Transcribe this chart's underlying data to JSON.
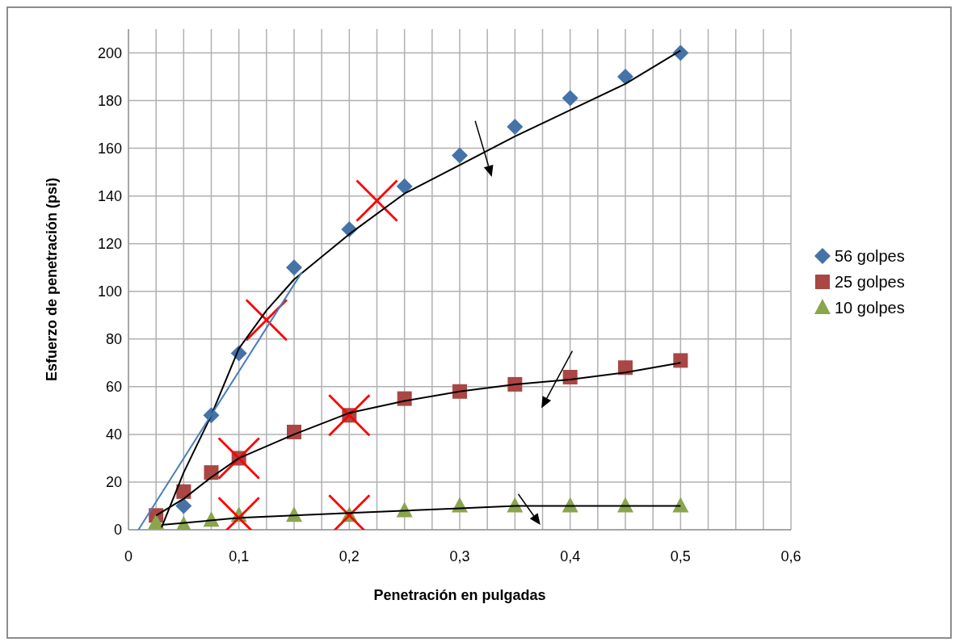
{
  "chart_data": {
    "type": "scatter",
    "xlabel": "Penetración  en pulgadas",
    "ylabel": "Esfuerzo de penetración (psi)",
    "xlim": [
      0,
      0.6
    ],
    "xticks": [
      0,
      {
        "value": 0.025,
        "label": null
      },
      {
        "value": 0.05,
        "label": null
      },
      {
        "value": 0.075,
        "label": null
      },
      {
        "value": 0.1,
        "label": "0,1"
      },
      {
        "value": 0.125,
        "label": null
      },
      {
        "value": 0.15,
        "label": null
      },
      {
        "value": 0.175,
        "label": null
      },
      {
        "value": 0.2,
        "label": "0,2"
      },
      {
        "value": 0.225,
        "label": null
      },
      {
        "value": 0.25,
        "label": null
      },
      {
        "value": 0.275,
        "label": null
      },
      {
        "value": 0.3,
        "label": "0,3"
      },
      {
        "value": 0.325,
        "label": null
      },
      {
        "value": 0.35,
        "label": null
      },
      {
        "value": 0.375,
        "label": null
      },
      {
        "value": 0.4,
        "label": "0,4"
      },
      {
        "value": 0.425,
        "label": null
      },
      {
        "value": 0.45,
        "label": null
      },
      {
        "value": 0.475,
        "label": null
      },
      {
        "value": 0.5,
        "label": "0,5"
      },
      {
        "value": 0.525,
        "label": null
      },
      {
        "value": 0.55,
        "label": null
      },
      {
        "value": 0.575,
        "label": null
      },
      {
        "value": 0.6,
        "label": "0,6"
      }
    ],
    "ylim": [
      0,
      210
    ],
    "yticks": [
      0,
      20,
      40,
      60,
      80,
      100,
      120,
      140,
      160,
      180,
      200
    ],
    "grid": true,
    "legend": "right",
    "series": [
      {
        "name": "56 golpes",
        "color": "#4573a7",
        "marker": "diamond",
        "x": [
          0.05,
          0.075,
          0.1,
          0.15,
          0.2,
          0.25,
          0.3,
          0.35,
          0.4,
          0.45,
          0.5
        ],
        "values": [
          10,
          48,
          74,
          110,
          126,
          144,
          157,
          169,
          181,
          190,
          200
        ]
      },
      {
        "name": "25 golpes",
        "color": "#aa4643",
        "marker": "square",
        "x": [
          0.025,
          0.05,
          0.075,
          0.1,
          0.15,
          0.2,
          0.25,
          0.3,
          0.35,
          0.4,
          0.45,
          0.5
        ],
        "values": [
          6,
          16,
          24,
          30,
          41,
          48,
          55,
          58,
          61,
          64,
          68,
          71
        ]
      },
      {
        "name": "10 golpes",
        "color": "#89a54e",
        "marker": "triangle",
        "x": [
          0.025,
          0.05,
          0.075,
          0.1,
          0.15,
          0.2,
          0.25,
          0.3,
          0.35,
          0.4,
          0.45,
          0.5
        ],
        "values": [
          3,
          2,
          4,
          6,
          6,
          6,
          8,
          10,
          10,
          10,
          10,
          10
        ]
      },
      {
        "type": "line",
        "color": "#000000",
        "x": [
          0.03,
          0.05,
          0.075,
          0.1,
          0.125,
          0.15,
          0.2,
          0.25,
          0.3,
          0.35,
          0.4,
          0.45,
          0.5
        ],
        "values": [
          1,
          24,
          48,
          76,
          92,
          105,
          124,
          141,
          153,
          165,
          176,
          187,
          201
        ]
      },
      {
        "type": "line",
        "color": "#000000",
        "x": [
          0.025,
          0.05,
          0.075,
          0.1,
          0.15,
          0.2,
          0.25,
          0.3,
          0.35,
          0.4,
          0.45,
          0.5
        ],
        "values": [
          6,
          13,
          22,
          30,
          40,
          49,
          54,
          58,
          61,
          63,
          66,
          70
        ]
      },
      {
        "type": "line",
        "color": "#000000",
        "x": [
          0.03,
          0.1,
          0.2,
          0.3,
          0.35,
          0.4,
          0.5
        ],
        "values": [
          2,
          5,
          7,
          9,
          10,
          10,
          10
        ]
      },
      {
        "type": "line",
        "color": "#4a7ebb",
        "x": [
          0.009,
          0.157
        ],
        "values": [
          0,
          108
        ]
      },
      {
        "color": "#ff0000",
        "marker": "cross",
        "x": [
          0.125,
          0.225,
          0.1,
          0.2,
          0.1,
          0.2
        ],
        "values": [
          88,
          138,
          30,
          48,
          5,
          6
        ]
      }
    ]
  }
}
